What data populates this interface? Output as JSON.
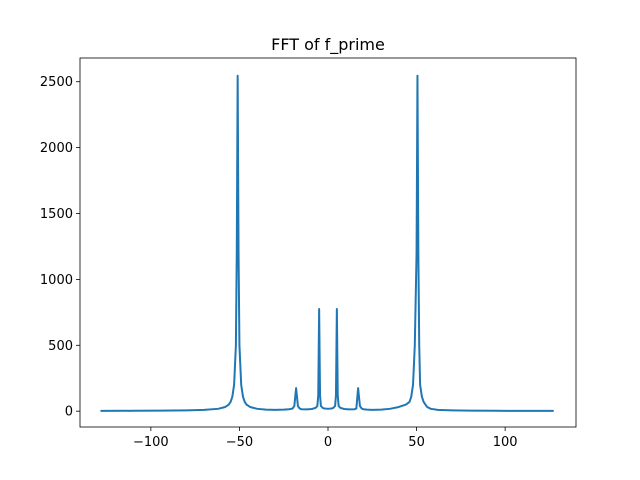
{
  "chart_data": {
    "type": "line",
    "title": "FFT of f_prime",
    "xlabel": "",
    "ylabel": "",
    "xlim": [
      -140,
      140
    ],
    "ylim": [
      -120,
      2680
    ],
    "x_ticks": [
      -100,
      -50,
      0,
      50,
      100
    ],
    "x_tick_labels": [
      "−100",
      "−50",
      "0",
      "50",
      "100"
    ],
    "y_ticks": [
      0,
      500,
      1000,
      1500,
      2000,
      2500
    ],
    "y_tick_labels": [
      "0",
      "500",
      "1000",
      "1500",
      "2000",
      "2500"
    ],
    "grid": false,
    "line_color": "#1f77b4",
    "series": [
      {
        "x": [
          -128,
          -110,
          -95,
          -80,
          -70,
          -62,
          -58,
          -56,
          -55,
          -54,
          -53,
          -52,
          -51.5,
          -51,
          -50.5,
          -50,
          -49,
          -48,
          -47,
          -46,
          -44,
          -40,
          -35,
          -30,
          -25,
          -22,
          -20,
          -19,
          -18,
          -17,
          -16,
          -15,
          -12,
          -9,
          -7,
          -6,
          -5.5,
          -5,
          -4.5,
          -4,
          -3,
          -2,
          0,
          2,
          3,
          4,
          4.5,
          5,
          5.5,
          6,
          7,
          9,
          12,
          15,
          16,
          17,
          18,
          19,
          20,
          22,
          25,
          30,
          35,
          40,
          44,
          46,
          47,
          48,
          49,
          50,
          50.5,
          51,
          51.5,
          52,
          53,
          54,
          55,
          56,
          58,
          62,
          70,
          80,
          95,
          110,
          127
        ],
        "y": [
          2,
          3,
          4,
          6,
          10,
          18,
          32,
          50,
          70,
          110,
          200,
          500,
          1200,
          2545,
          1200,
          500,
          200,
          110,
          70,
          50,
          32,
          18,
          12,
          10,
          12,
          15,
          20,
          40,
          175,
          40,
          20,
          15,
          14,
          17,
          25,
          40,
          120,
          775,
          120,
          40,
          25,
          20,
          18,
          20,
          25,
          40,
          120,
          775,
          120,
          40,
          25,
          17,
          14,
          15,
          20,
          175,
          40,
          20,
          15,
          12,
          10,
          12,
          18,
          32,
          50,
          70,
          110,
          200,
          500,
          1200,
          2545,
          1200,
          500,
          200,
          110,
          70,
          50,
          32,
          18,
          10,
          6,
          4,
          3,
          2,
          2
        ]
      }
    ]
  }
}
